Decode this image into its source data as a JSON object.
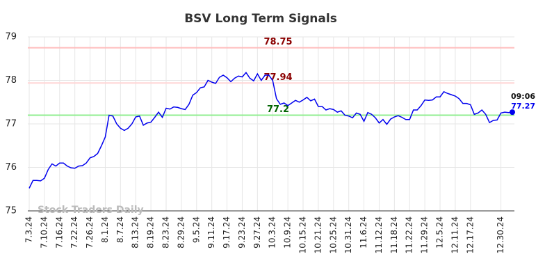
{
  "chart_data": {
    "type": "line",
    "title": "BSV Long Term Signals",
    "watermark": "Stock Traders Daily",
    "last_time": "09:06",
    "color": "#0000ee",
    "grid": true,
    "ylim": [
      75,
      79
    ],
    "yticks": [
      75,
      76,
      77,
      78,
      79
    ],
    "hlines": [
      {
        "value": 78.75,
        "color": "#ffbcbc",
        "text_color": "#8b0000"
      },
      {
        "value": 77.94,
        "color": "#ffd6d6",
        "text_color": "#8b0000"
      },
      {
        "value": 77.2,
        "color": "#90ee90",
        "text_color": "#006400"
      }
    ],
    "categories": [
      "7.3.24",
      null,
      null,
      null,
      "7.10.24",
      null,
      null,
      null,
      "7.16.24",
      null,
      null,
      null,
      "7.22.24",
      null,
      null,
      null,
      "7.26.24",
      null,
      null,
      null,
      "8.1.24",
      null,
      null,
      null,
      "8.7.24",
      null,
      null,
      null,
      "8.13.24",
      null,
      null,
      null,
      "8.19.24",
      null,
      null,
      null,
      "8.23.24",
      null,
      null,
      null,
      "8.29.24",
      null,
      null,
      null,
      "9.5.24",
      null,
      null,
      null,
      "9.11.24",
      null,
      null,
      null,
      "9.17.24",
      null,
      null,
      null,
      "9.23.24",
      null,
      null,
      null,
      "9.27.24",
      null,
      null,
      null,
      "10.3.24",
      null,
      null,
      null,
      "10.9.24",
      null,
      null,
      null,
      "10.15.24",
      null,
      null,
      null,
      "10.21.24",
      null,
      null,
      null,
      "10.25.24",
      null,
      null,
      null,
      "10.31.24",
      null,
      null,
      null,
      "11.6.24",
      null,
      null,
      null,
      "11.12.24",
      null,
      null,
      null,
      "11.18.24",
      null,
      null,
      null,
      "11.22.24",
      null,
      null,
      null,
      "11.29.24",
      null,
      null,
      null,
      "12.5.24",
      null,
      null,
      null,
      "12.11.24",
      null,
      null,
      null,
      "12.17.24",
      null,
      null,
      null,
      null,
      null,
      null,
      null,
      "12.30.24",
      null,
      null,
      null
    ],
    "values": [
      75.52,
      75.7,
      75.7,
      75.69,
      75.75,
      75.95,
      76.08,
      76.03,
      76.1,
      76.1,
      76.03,
      75.99,
      75.98,
      76.03,
      76.04,
      76.1,
      76.22,
      76.25,
      76.32,
      76.5,
      76.7,
      77.2,
      77.18,
      77.0,
      76.9,
      76.85,
      76.9,
      77.0,
      77.16,
      77.18,
      76.97,
      77.02,
      77.04,
      77.15,
      77.27,
      77.15,
      77.36,
      77.34,
      77.39,
      77.38,
      77.35,
      77.33,
      77.45,
      77.66,
      77.72,
      77.83,
      77.85,
      78.0,
      77.96,
      77.93,
      78.07,
      78.12,
      78.06,
      77.97,
      78.05,
      78.1,
      78.08,
      78.18,
      78.05,
      77.99,
      78.15,
      78.0,
      78.12,
      78.12,
      78.0,
      77.58,
      77.45,
      77.48,
      77.42,
      77.48,
      77.54,
      77.5,
      77.55,
      77.61,
      77.53,
      77.57,
      77.4,
      77.4,
      77.32,
      77.35,
      77.33,
      77.27,
      77.3,
      77.2,
      77.18,
      77.14,
      77.25,
      77.22,
      77.06,
      77.26,
      77.22,
      77.14,
      77.02,
      77.1,
      76.99,
      77.11,
      77.16,
      77.19,
      77.15,
      77.1,
      77.1,
      77.32,
      77.32,
      77.42,
      77.55,
      77.54,
      77.55,
      77.62,
      77.62,
      77.74,
      77.7,
      77.67,
      77.64,
      77.58,
      77.47,
      77.47,
      77.44,
      77.22,
      77.25,
      77.32,
      77.22,
      77.03,
      77.08,
      77.09,
      77.25,
      77.27,
      77.26,
      77.27
    ]
  }
}
